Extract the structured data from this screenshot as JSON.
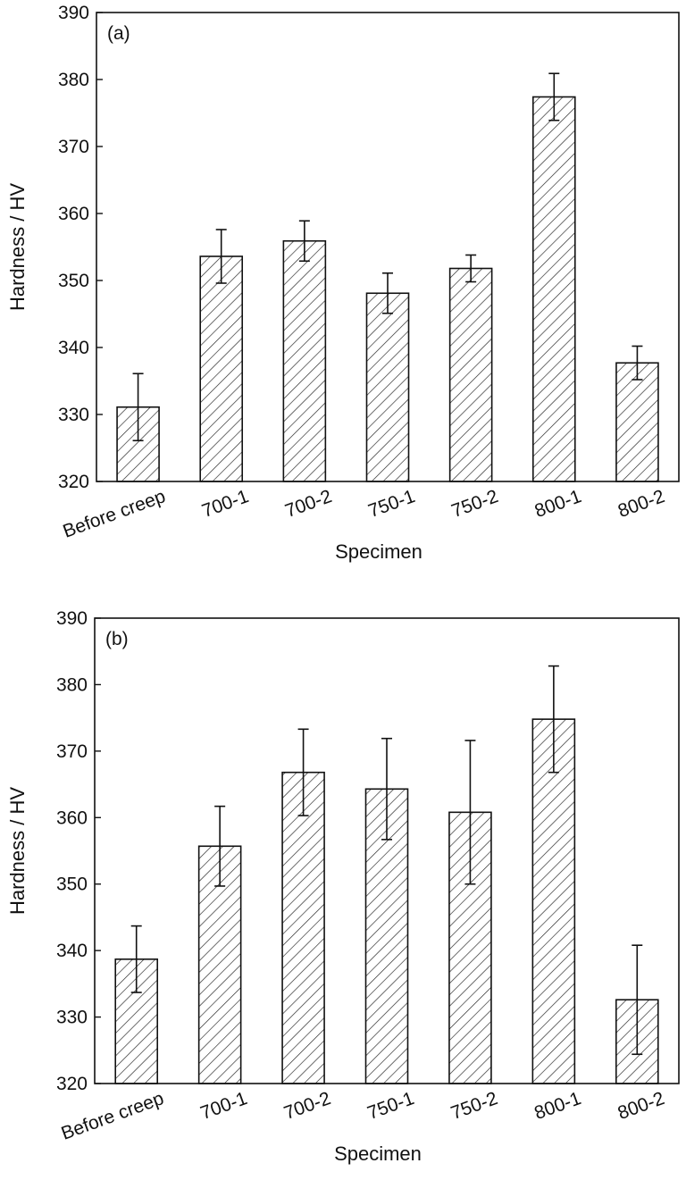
{
  "chart_data": [
    {
      "type": "bar",
      "panel_label": "(a)",
      "xlabel": "Specimen",
      "ylabel": "Hardness / HV",
      "ylim": [
        320,
        390
      ],
      "yticks": [
        320,
        330,
        340,
        350,
        360,
        370,
        380,
        390
      ],
      "categories": [
        "Before creep",
        "700-1",
        "700-2",
        "750-1",
        "750-2",
        "800-1",
        "800-2"
      ],
      "values": [
        331.1,
        353.6,
        355.9,
        348.1,
        351.8,
        377.4,
        337.7
      ],
      "error": [
        5.0,
        4.0,
        3.0,
        3.0,
        2.0,
        3.5,
        2.5
      ],
      "bar_pattern": "diagonal-hatch",
      "grid": false
    },
    {
      "type": "bar",
      "panel_label": "(b)",
      "xlabel": "Specimen",
      "ylabel": "Hardness / HV",
      "ylim": [
        320,
        390
      ],
      "yticks": [
        320,
        330,
        340,
        350,
        360,
        370,
        380,
        390
      ],
      "categories": [
        "Before creep",
        "700-1",
        "700-2",
        "750-1",
        "750-2",
        "800-1",
        "800-2"
      ],
      "values": [
        338.7,
        355.7,
        366.8,
        364.3,
        360.8,
        374.8,
        332.6
      ],
      "error": [
        5.0,
        6.0,
        6.5,
        7.6,
        10.8,
        8.0,
        8.2
      ],
      "bar_pattern": "diagonal-hatch",
      "grid": false
    }
  ]
}
